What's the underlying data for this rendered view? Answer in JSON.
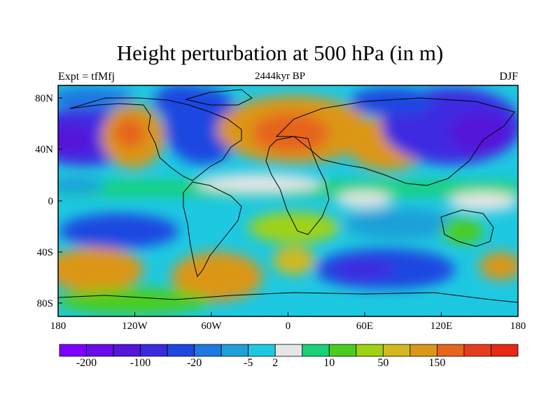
{
  "figure": {
    "title": "Height perturbation at 500 hPa (in m)",
    "left_label": "Expt = tfMfj",
    "center_label": "2444kyr BP",
    "right_label": "DJF"
  },
  "axes": {
    "x_ticks": [
      "180",
      "120W",
      "60W",
      "0",
      "60E",
      "120E",
      "180"
    ],
    "y_ticks": [
      "80N",
      "40N",
      "0",
      "40S",
      "80S"
    ],
    "x_tick_values": [
      -180,
      -120,
      -60,
      0,
      60,
      120,
      180
    ],
    "y_tick_values": [
      80,
      40,
      0,
      -40,
      -80
    ],
    "lon_range": [
      -180,
      180
    ],
    "lat_range": [
      -90,
      90
    ]
  },
  "colorbar": {
    "colors": [
      "#7f00ff",
      "#6a0be9",
      "#5515da",
      "#3c2ae1",
      "#1e46e1",
      "#1e78e1",
      "#1ea0d8",
      "#1ec8e1",
      "#e6e6e6",
      "#19d277",
      "#4bcd1e",
      "#a0d214",
      "#d2b91e",
      "#dc9619",
      "#e6641e",
      "#e63c1e",
      "#e62814"
    ],
    "labels": [
      "-200",
      "-100",
      "-20",
      "-5",
      "2",
      "10",
      "50",
      "150"
    ],
    "label_boundaries": [
      1,
      3,
      5,
      7,
      8,
      10,
      12,
      14
    ]
  }
}
